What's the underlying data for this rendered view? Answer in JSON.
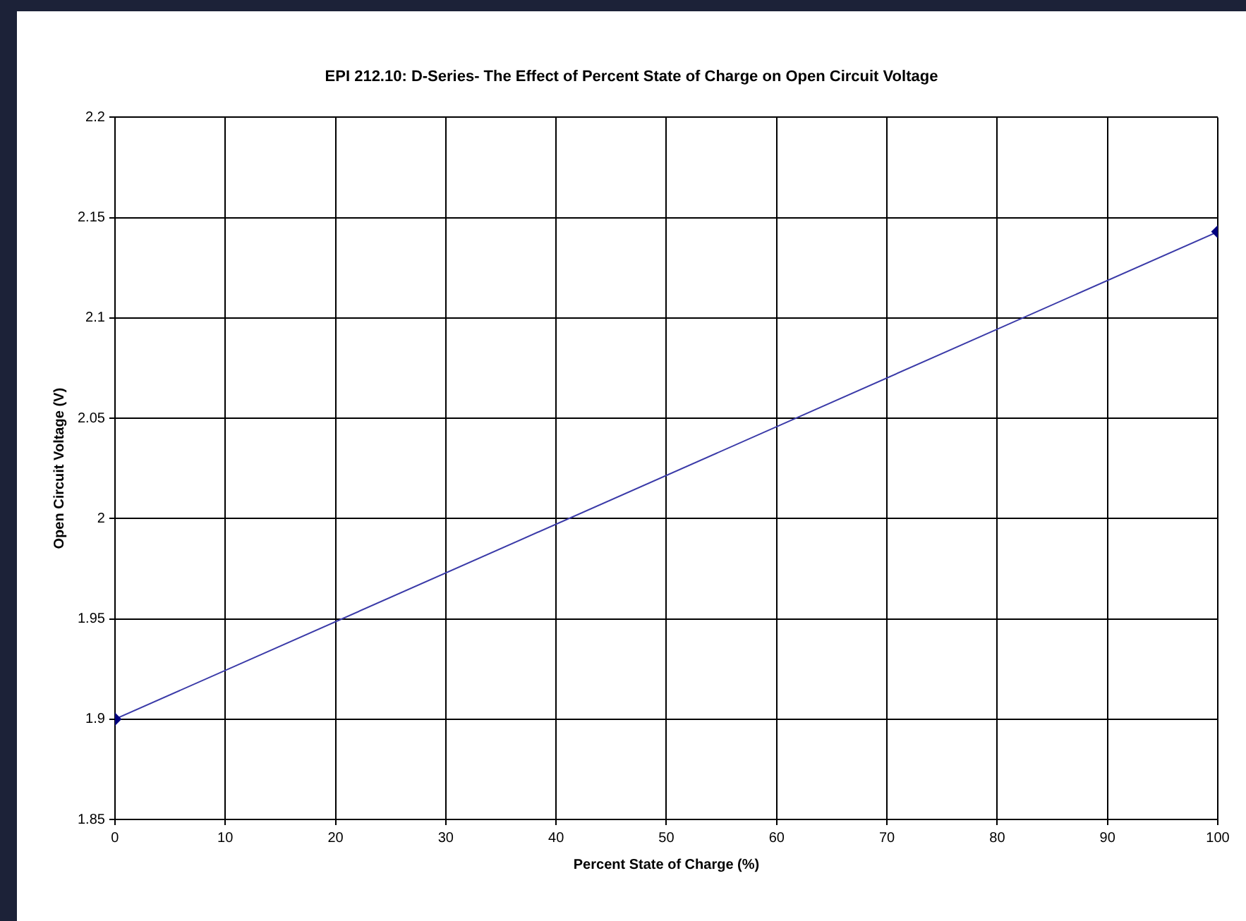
{
  "chart_data": {
    "type": "line",
    "title": "EPI 212.10: D-Series- The Effect of Percent State of Charge on Open Circuit Voltage",
    "xlabel": "Percent State of Charge (%)",
    "ylabel": "Open Circuit Voltage (V)",
    "x": [
      0,
      100
    ],
    "series": [
      {
        "color": "#3a3aa8",
        "values": [
          1.9,
          2.143
        ]
      }
    ],
    "xlim": [
      0,
      100
    ],
    "xticks": [
      0,
      10,
      20,
      30,
      40,
      50,
      60,
      70,
      80,
      90,
      100
    ],
    "ylim": [
      1.85,
      2.2
    ],
    "yticks": [
      1.85,
      1.9,
      1.95,
      2,
      2.05,
      2.1,
      2.15,
      2.2
    ],
    "grid": true,
    "legend": false,
    "marker": "diamond",
    "line_style": "solid"
  }
}
